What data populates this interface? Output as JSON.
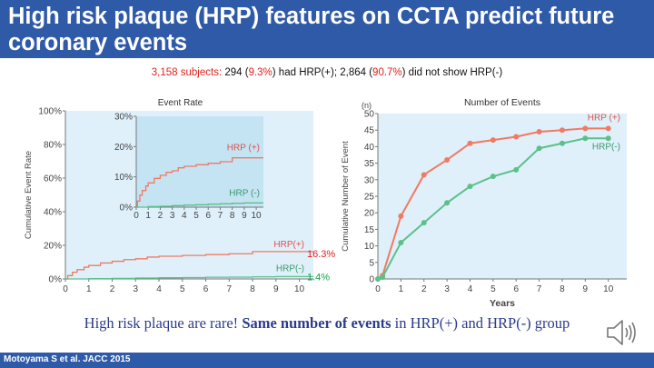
{
  "title": "High risk plaque (HRP) features on CCTA predict future coronary events",
  "subtitle": {
    "total": "3,158 subjects:",
    "hrp_pos_count": "294 (",
    "hrp_pos_pct": "9.3%",
    "hrp_pos_tail": ") had HRP(+); 2,864 (",
    "hrp_neg_pct": "90.7%",
    "hrp_neg_tail": ") did not show HRP(-)"
  },
  "caption": {
    "part1": "High risk plaque are rare! ",
    "bold": "Same number of events",
    "part2": " in HRP(+) and HRP(-) group"
  },
  "footer": "Motoyama S et al. JACC 2015",
  "speaker_icon": "speaker-icon",
  "colors": {
    "hrp_pos": "#f07a62",
    "hrp_neg": "#5cc08a",
    "panel_bg": "#dff0fa",
    "inset_bg": "#c4e3f3",
    "title_bar": "#2e5aa8",
    "red_label": "#e0211f",
    "green_label": "#17a34a"
  },
  "chart_data": [
    {
      "type": "line",
      "title": "Event Rate",
      "xlabel": "",
      "ylabel": "Cumulative Event Rate",
      "x_ticks": [
        "0",
        "1",
        "2",
        "3",
        "4",
        "5",
        "6",
        "7",
        "8",
        "9",
        "10"
      ],
      "y_ticks": [
        "0%",
        "20%",
        "40%",
        "60%",
        "80%",
        "100%"
      ],
      "xlim": [
        0,
        10.6
      ],
      "ylim": [
        0,
        100
      ],
      "series": [
        {
          "name": "HRP(+)",
          "end_label": "16.3%",
          "x": [
            0,
            0.1,
            0.3,
            0.5,
            0.8,
            1.0,
            1.5,
            2.0,
            2.5,
            3.0,
            3.5,
            4.0,
            4.5,
            5.0,
            5.5,
            6.0,
            6.5,
            7.0,
            7.5,
            8.0,
            8.5,
            9.0,
            9.5,
            10.0,
            10.6
          ],
          "y": [
            0,
            2,
            4,
            5.5,
            7,
            8,
            9.5,
            10.5,
            11.5,
            12,
            13,
            13.5,
            13.5,
            14,
            14,
            14.5,
            14.5,
            15,
            15,
            16.3,
            16.3,
            16.3,
            16.3,
            16.3,
            16.3
          ]
        },
        {
          "name": "HRP(-)",
          "end_label": "1.4%",
          "x": [
            0,
            1,
            2,
            3,
            4,
            5,
            6,
            7,
            8,
            9,
            10,
            10.6
          ],
          "y": [
            0,
            0.2,
            0.3,
            0.5,
            0.7,
            0.8,
            1.0,
            1.1,
            1.3,
            1.4,
            1.4,
            1.4
          ]
        }
      ],
      "inset": {
        "x_ticks": [
          "0",
          "1",
          "2",
          "3",
          "4",
          "5",
          "6",
          "7",
          "8",
          "9",
          "10"
        ],
        "y_ticks": [
          "0%",
          "10%",
          "20%",
          "30%"
        ],
        "xlim": [
          0,
          10.6
        ],
        "ylim": [
          0,
          30
        ],
        "series": [
          {
            "name": "HRP (+)",
            "x": [
              0,
              0.1,
              0.3,
              0.5,
              0.8,
              1.0,
              1.5,
              2.0,
              2.5,
              3.0,
              3.5,
              4.0,
              4.5,
              5.0,
              5.5,
              6.0,
              6.5,
              7.0,
              7.5,
              8.0,
              8.5,
              9.0,
              9.5,
              10.0,
              10.6
            ],
            "y": [
              0,
              2,
              4,
              5.5,
              7,
              8,
              9.5,
              10.5,
              11.5,
              12,
              13,
              13.5,
              13.5,
              14,
              14,
              14.5,
              14.5,
              15,
              15,
              16.3,
              16.3,
              16.3,
              16.3,
              16.3,
              16.3
            ]
          },
          {
            "name": "HRP (-)",
            "x": [
              0,
              1,
              2,
              3,
              4,
              5,
              6,
              7,
              8,
              9,
              10,
              10.6
            ],
            "y": [
              0,
              0.2,
              0.3,
              0.5,
              0.7,
              0.8,
              1.0,
              1.1,
              1.3,
              1.4,
              1.4,
              1.4
            ]
          }
        ]
      }
    },
    {
      "type": "line",
      "title": "Number of Events",
      "unit_label": "(n)",
      "xlabel": "Years",
      "ylabel": "Cumulative Number of Event",
      "x_ticks": [
        "0",
        "1",
        "2",
        "3",
        "4",
        "5",
        "6",
        "7",
        "8",
        "9",
        "10"
      ],
      "y_ticks": [
        "0",
        "5",
        "10",
        "15",
        "20",
        "25",
        "30",
        "35",
        "40",
        "45",
        "50"
      ],
      "xlim": [
        0,
        10.8
      ],
      "ylim": [
        0,
        50
      ],
      "series": [
        {
          "name": "HRP (+)",
          "x": [
            0,
            0.2,
            1,
            2,
            3,
            4,
            5,
            6,
            7,
            8,
            9,
            10
          ],
          "y": [
            0,
            1,
            19,
            31.5,
            36,
            41,
            42,
            43,
            44.5,
            45,
            45.5,
            45.5
          ]
        },
        {
          "name": "HRP(-)",
          "x": [
            0,
            0.2,
            1,
            2,
            3,
            4,
            5,
            6,
            7,
            8,
            9,
            10
          ],
          "y": [
            0,
            0.5,
            11,
            17,
            23,
            28,
            31,
            33,
            39.5,
            41,
            42.5,
            42.5
          ]
        }
      ]
    }
  ]
}
